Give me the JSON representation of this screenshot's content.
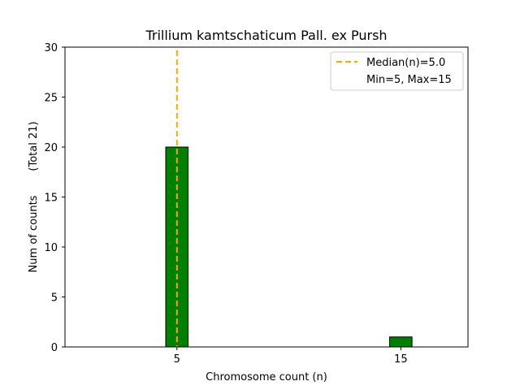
{
  "chart_data": {
    "type": "bar",
    "title": "Trillium kamtschaticum Pall. ex Pursh",
    "xlabel": "Chromosome count (n)",
    "ylabel": "Num of counts",
    "ylabel_total": "(Total 21)",
    "xlim": [
      0,
      18
    ],
    "ylim": [
      0,
      30
    ],
    "x_ticks": [
      5,
      15
    ],
    "y_ticks": [
      0,
      5,
      10,
      15,
      20,
      25,
      30
    ],
    "bar_width": 1,
    "bars": [
      {
        "x": 5,
        "value": 20
      },
      {
        "x": 15,
        "value": 1
      }
    ],
    "median": 5.0,
    "legend": {
      "position": "top-right",
      "entries": [
        "Median(n)=5.0",
        "Min=5, Max=15"
      ]
    },
    "colors": {
      "bar_fill": "#008000",
      "bar_edge": "#000000",
      "median_line": "#FFA500"
    },
    "grid": false
  }
}
